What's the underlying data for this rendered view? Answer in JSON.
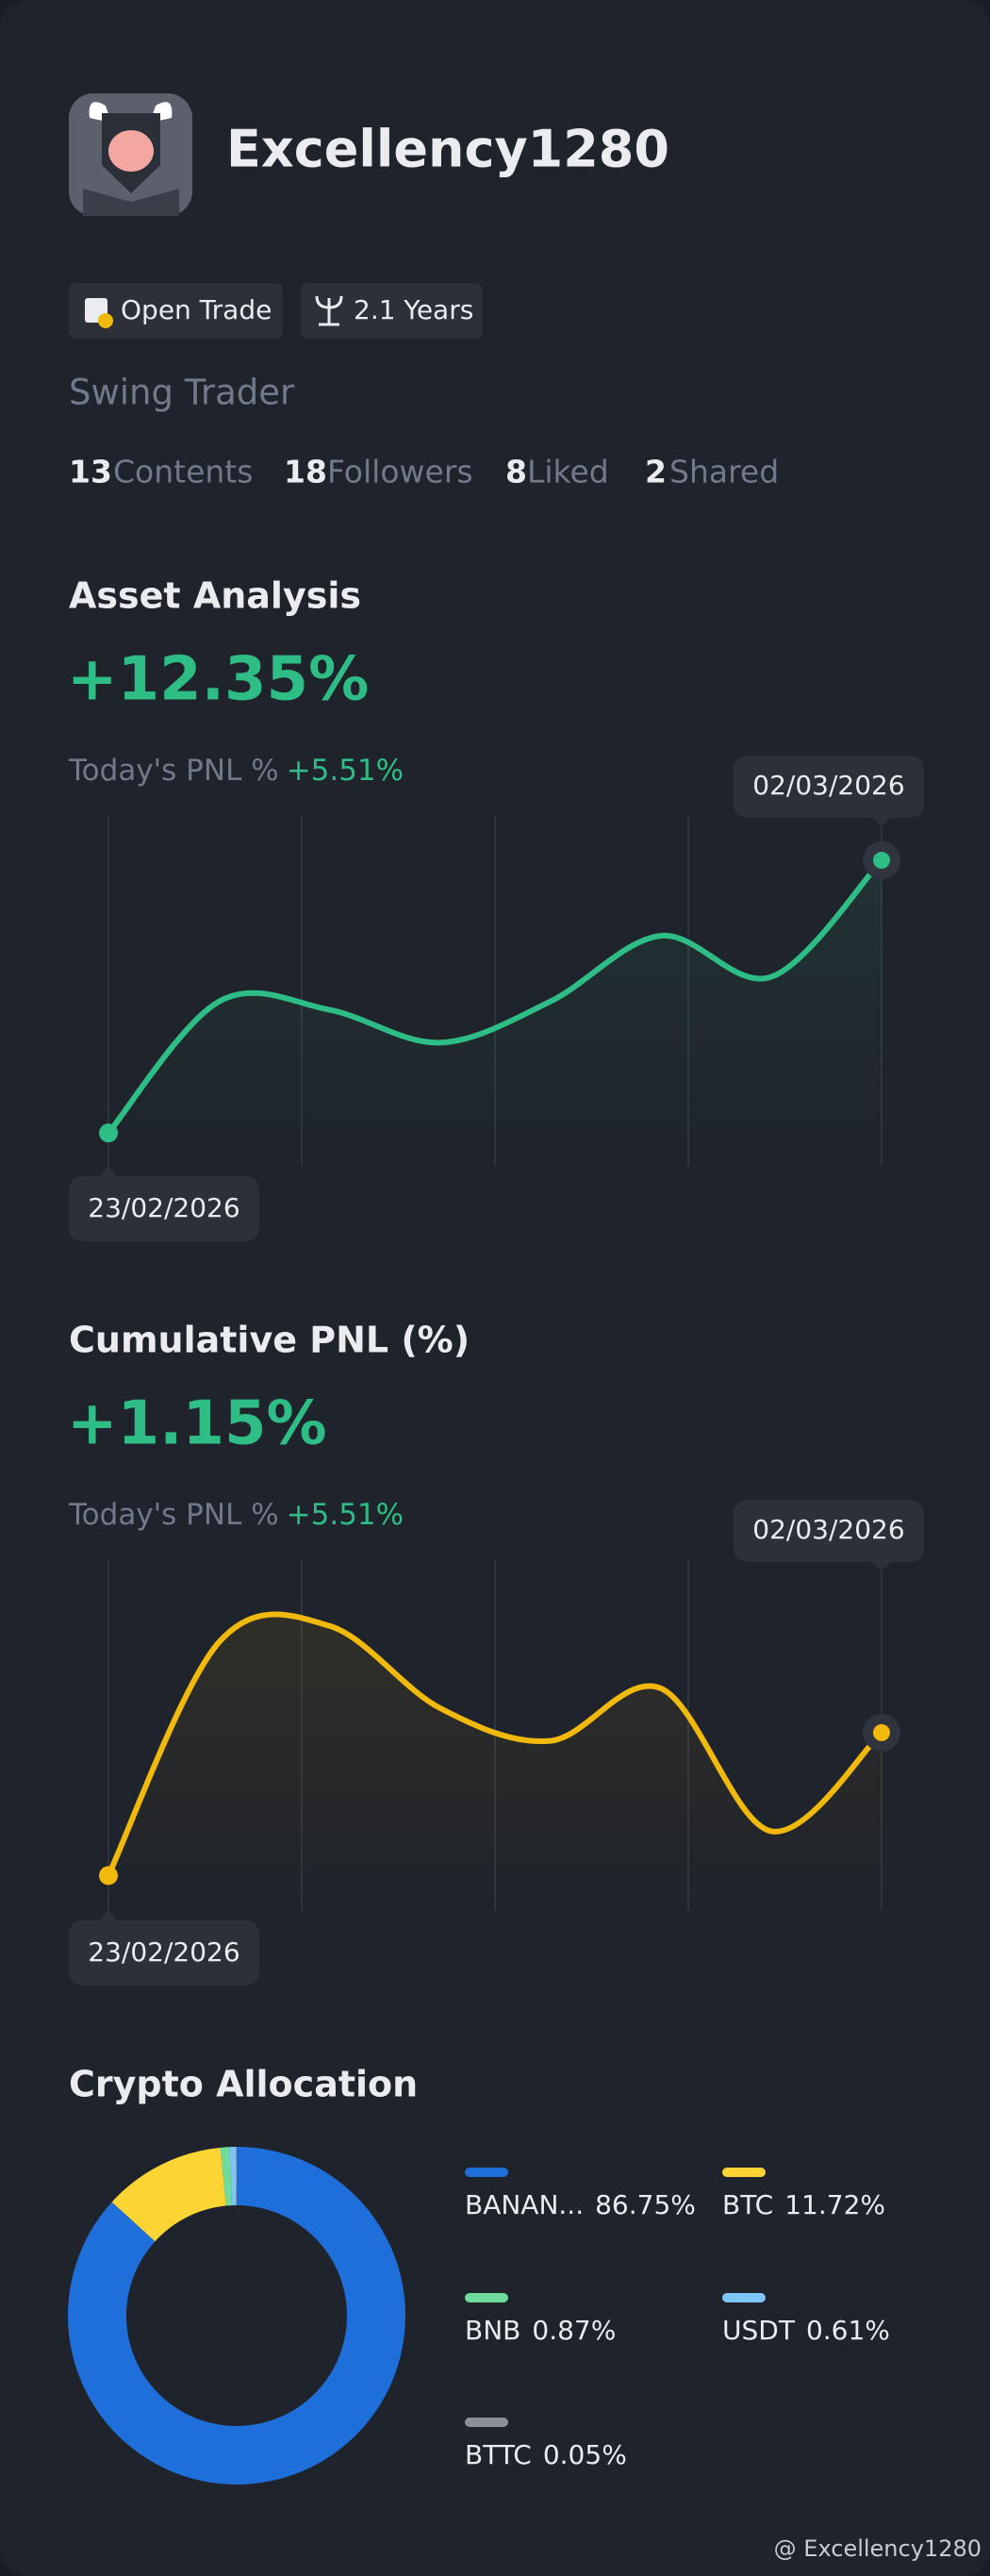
{
  "profile": {
    "name": "Excellency1280",
    "tags": [
      "Open Trade",
      "2.1 Years"
    ],
    "role": "Swing Trader",
    "stats": [
      {
        "value": 13,
        "label": "Contents"
      },
      {
        "value": 18,
        "label": "Followers"
      },
      {
        "value": 8,
        "label": "Liked"
      },
      {
        "value": 2,
        "label": "Shared"
      }
    ]
  },
  "chart_data": [
    {
      "type": "line",
      "title": "Asset Analysis",
      "headline": "+12.35%",
      "subtitle": "Today's PNL %",
      "subtitle_value": "+5.51%",
      "categories": [
        "23/02/2026",
        null,
        null,
        null,
        null,
        null,
        null,
        "02/03/2026"
      ],
      "values": [
        20,
        100,
        95,
        75,
        100,
        140,
        115,
        186
      ],
      "color": "#2ebd85",
      "ylim": [
        0,
        213
      ]
    },
    {
      "type": "line",
      "title": "Cumulative PNL (%)",
      "headline": "+1.15%",
      "subtitle": "Today's PNL %",
      "subtitle_value": "+5.51%",
      "categories": [
        "23/02/2026",
        null,
        null,
        null,
        null,
        null,
        null,
        "02/03/2026"
      ],
      "values": [
        21,
        163,
        173,
        123,
        103,
        135,
        48,
        108
      ],
      "color": "#f0b90b",
      "ylim": [
        0,
        213
      ]
    },
    {
      "type": "pie",
      "title": "Crypto Allocation",
      "categories": [
        "BANAN...",
        "BTC",
        "BNB",
        "USDT",
        "BTTC"
      ],
      "values": [
        86.75,
        11.72,
        0.87,
        0.61,
        0.05
      ],
      "value_labels": [
        "86.75%",
        "11.72%",
        "0.87%",
        "0.61%",
        "0.05%"
      ],
      "colors": [
        "#1e6fd9",
        "#fcd535",
        "#6fdc9c",
        "#7fc4f8",
        "#8a8f99"
      ]
    }
  ],
  "footer": "@ Excellency1280"
}
